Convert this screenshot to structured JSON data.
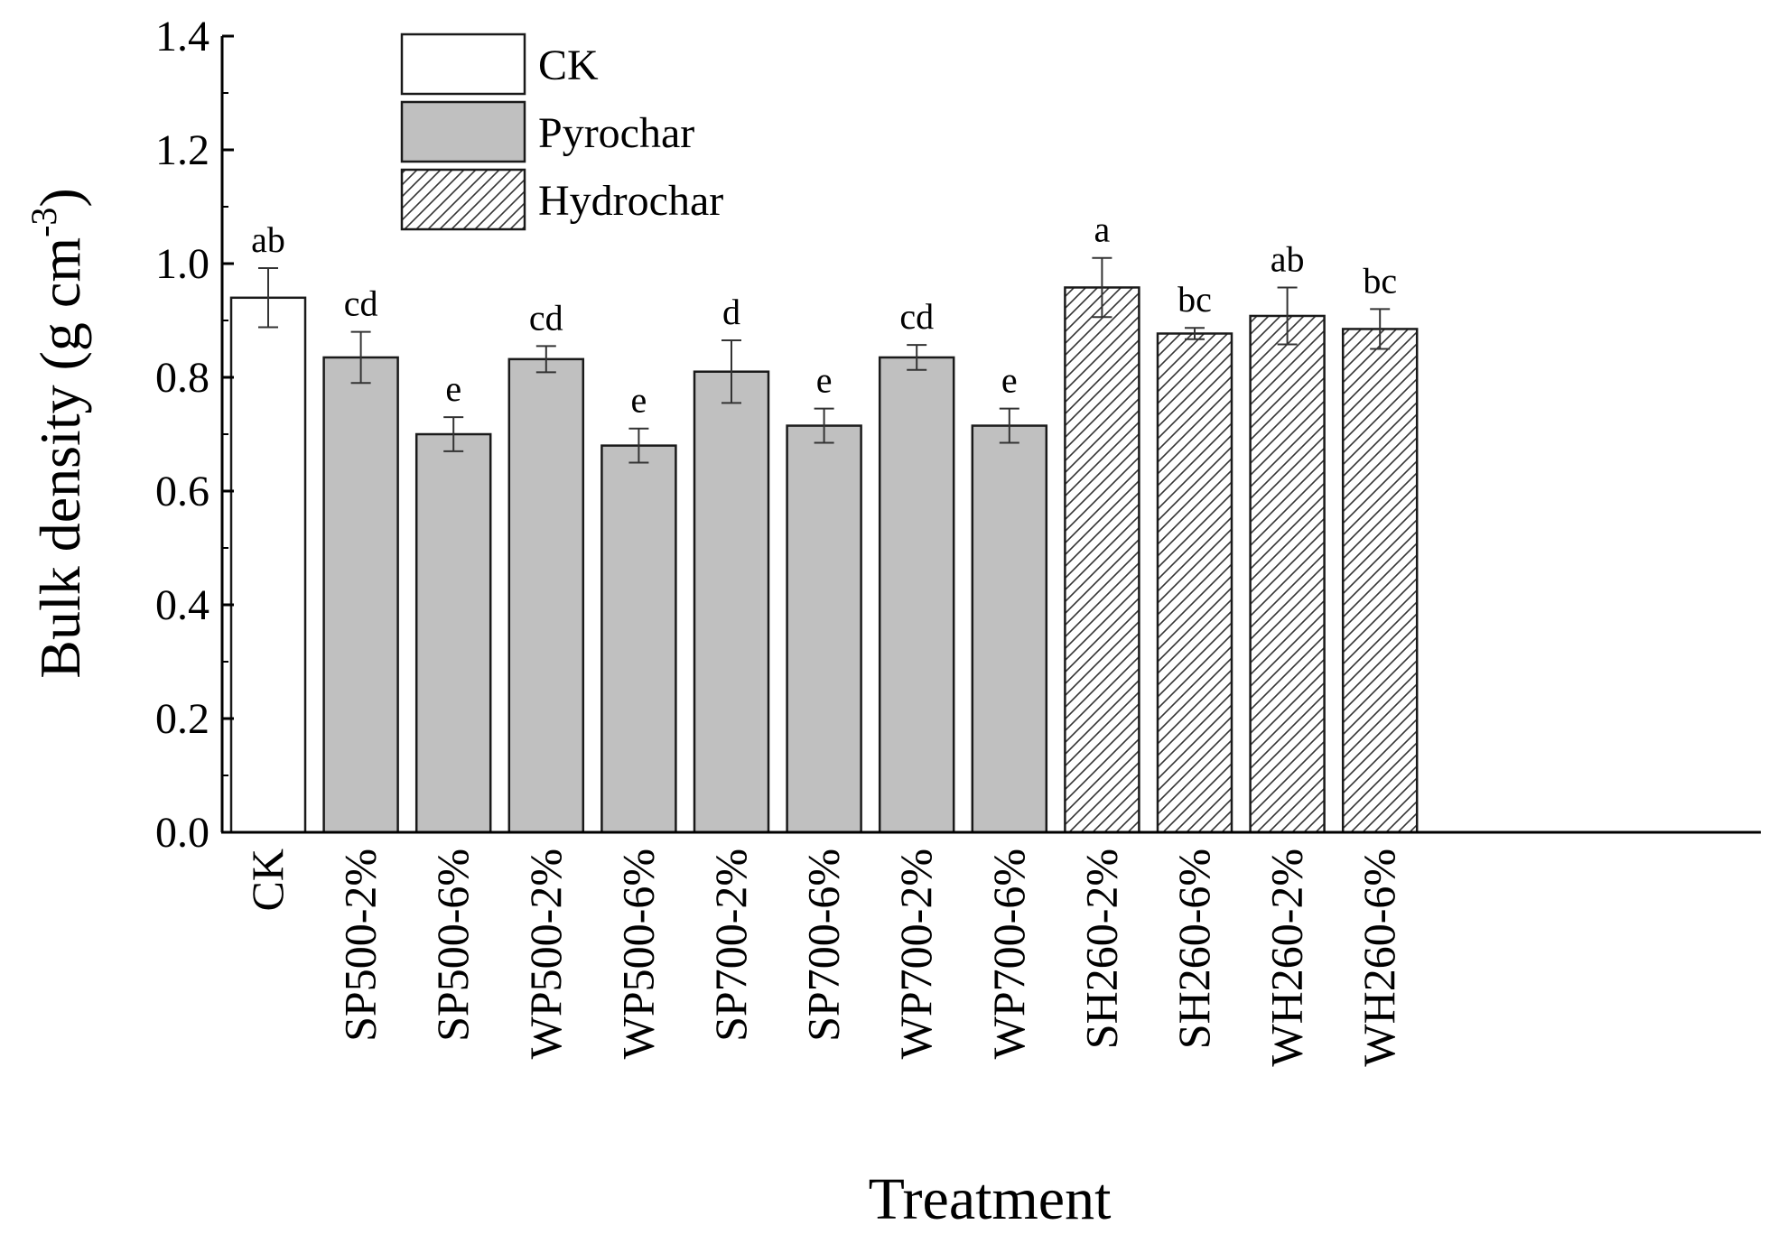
{
  "chart_data": {
    "type": "bar",
    "title": "",
    "xlabel": "Treatment",
    "ylabel": "Bulk density (g cm",
    "ylabel_superscript": "-3",
    "ylabel_close": ")",
    "ylim": [
      0.0,
      1.4
    ],
    "yticks": [
      0.0,
      0.2,
      0.4,
      0.6,
      0.8,
      1.0,
      1.2,
      1.4
    ],
    "ytick_labels": [
      "0.0",
      "0.2",
      "0.4",
      "0.6",
      "0.8",
      "1.0",
      "1.2",
      "1.4"
    ],
    "legend_position": "top-left",
    "groups": [
      {
        "name": "CK",
        "fill": "#ffffff",
        "pattern": "none"
      },
      {
        "name": "Pyrochar",
        "fill": "#c0c0c0",
        "pattern": "none"
      },
      {
        "name": "Hydrochar",
        "fill": "#ffffff",
        "pattern": "diagonal-hatch"
      }
    ],
    "categories": [
      "CK",
      "SP500-2%",
      "SP500-6%",
      "WP500-2%",
      "WP500-6%",
      "SP700-2%",
      "SP700-6%",
      "WP700-2%",
      "WP700-6%",
      "SH260-2%",
      "SH260-6%",
      "WH260-2%",
      "WH260-6%"
    ],
    "group_of_category": [
      "CK",
      "Pyrochar",
      "Pyrochar",
      "Pyrochar",
      "Pyrochar",
      "Pyrochar",
      "Pyrochar",
      "Pyrochar",
      "Pyrochar",
      "Hydrochar",
      "Hydrochar",
      "Hydrochar",
      "Hydrochar"
    ],
    "values": [
      0.94,
      0.835,
      0.7,
      0.832,
      0.68,
      0.81,
      0.715,
      0.835,
      0.715,
      0.958,
      0.877,
      0.908,
      0.885
    ],
    "errors": [
      0.052,
      0.045,
      0.03,
      0.023,
      0.03,
      0.055,
      0.03,
      0.022,
      0.03,
      0.052,
      0.01,
      0.05,
      0.035
    ],
    "significance": [
      "ab",
      "cd",
      "e",
      "cd",
      "e",
      "d",
      "e",
      "cd",
      "e",
      "a",
      "bc",
      "ab",
      "bc"
    ],
    "colors": {
      "axis": "#000000",
      "bar_edge": "#1a1a1a",
      "pyrochar_fill": "#c0c0c0",
      "hatch": "#333333"
    }
  }
}
